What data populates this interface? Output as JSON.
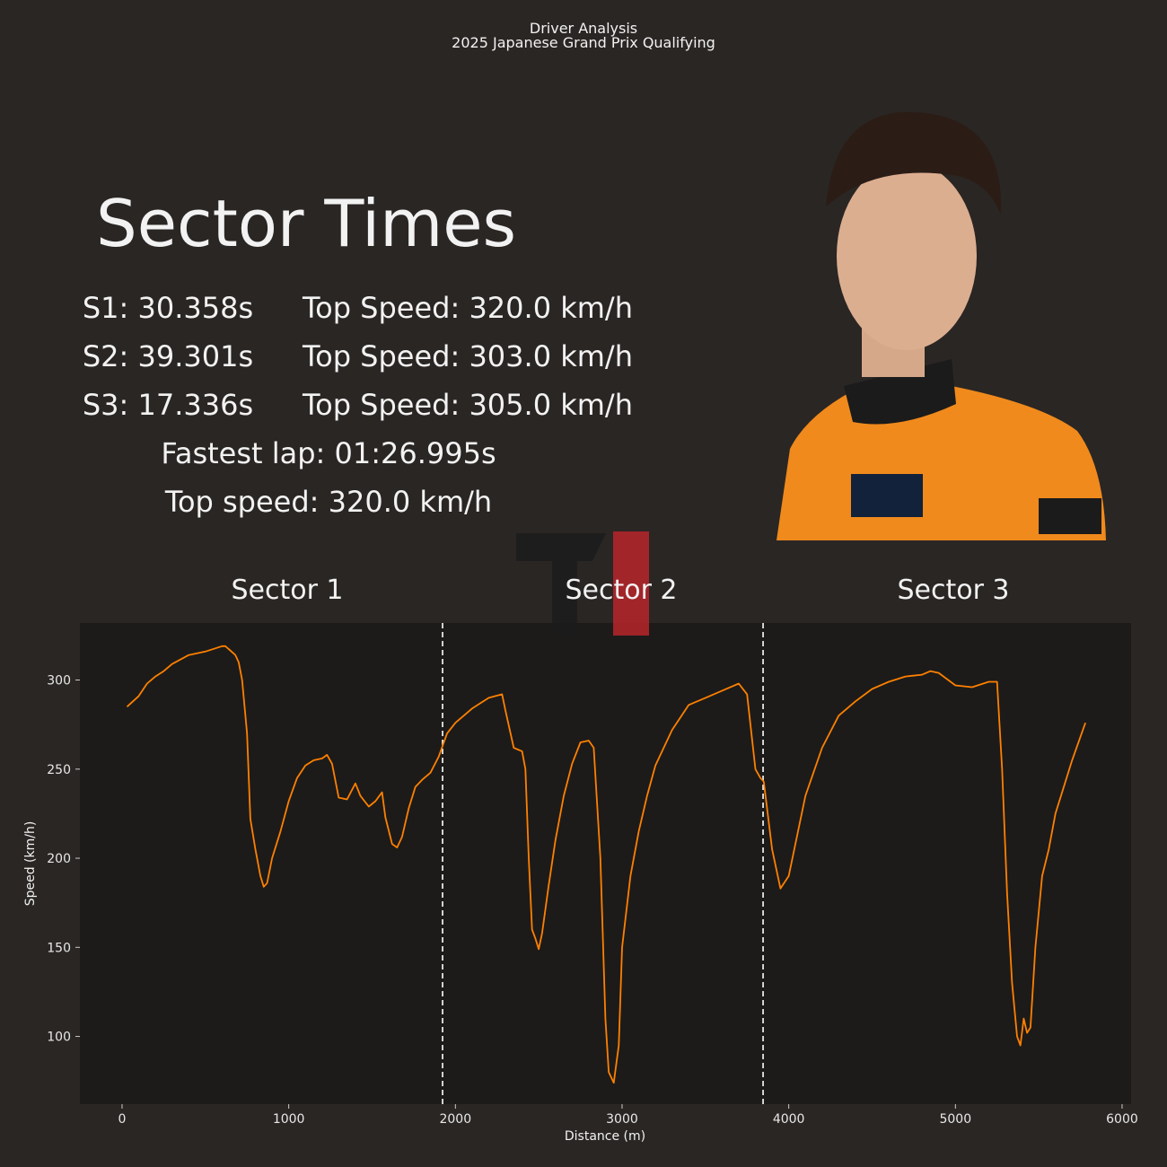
{
  "header": {
    "title": "Driver Analysis",
    "subtitle": "2025 Japanese Grand Prix Qualifying"
  },
  "panel": {
    "heading": "Sector Times",
    "rows": [
      [
        "S1: 30.358s",
        "Top Speed: 320.0 km/h"
      ],
      [
        "S2: 39.301s",
        "Top Speed: 303.0 km/h"
      ],
      [
        "S3: 17.336s",
        "Top Speed: 305.0 km/h"
      ]
    ],
    "fastest_lap": "Fastest lap: 01:26.995s",
    "top_speed": "Top speed: 320.0 km/h"
  },
  "chart_data": {
    "type": "line",
    "sector_labels": [
      "Sector 1",
      "Sector 2",
      "Sector 3"
    ],
    "sector_boundaries": [
      1923,
      3846
    ],
    "x_label": "Distance (m)",
    "y_label": "Speed (km/h)",
    "color": "#ff8000",
    "x": [
      30,
      100,
      150,
      200,
      250,
      300,
      400,
      500,
      600,
      620,
      680,
      700,
      720,
      750,
      770,
      800,
      830,
      850,
      870,
      900,
      950,
      1000,
      1050,
      1100,
      1150,
      1200,
      1230,
      1260,
      1300,
      1350,
      1400,
      1430,
      1480,
      1520,
      1560,
      1580,
      1620,
      1650,
      1680,
      1720,
      1760,
      1800,
      1850,
      1900,
      1950,
      2000,
      2100,
      2200,
      2280,
      2300,
      2350,
      2400,
      2420,
      2440,
      2460,
      2480,
      2500,
      2520,
      2560,
      2600,
      2650,
      2700,
      2750,
      2800,
      2830,
      2870,
      2900,
      2920,
      2950,
      2980,
      3000,
      3050,
      3100,
      3150,
      3200,
      3300,
      3400,
      3500,
      3600,
      3700,
      3750,
      3800,
      3830,
      3850,
      3900,
      3950,
      4000,
      4100,
      4200,
      4300,
      4400,
      4500,
      4600,
      4700,
      4800,
      4850,
      4900,
      5000,
      5100,
      5200,
      5250,
      5280,
      5310,
      5340,
      5370,
      5390,
      5410,
      5430,
      5450,
      5480,
      5520,
      5560,
      5600,
      5700,
      5780
    ],
    "values": [
      285,
      291,
      298,
      302,
      305,
      309,
      314,
      316,
      319,
      319,
      314,
      310,
      300,
      270,
      222,
      205,
      190,
      184,
      186,
      200,
      215,
      232,
      245,
      252,
      255,
      256,
      258,
      253,
      234,
      233,
      242,
      235,
      229,
      232,
      237,
      223,
      208,
      206,
      212,
      228,
      240,
      244,
      248,
      257,
      270,
      276,
      284,
      290,
      292,
      283,
      262,
      260,
      250,
      200,
      160,
      155,
      149,
      158,
      185,
      210,
      235,
      253,
      265,
      266,
      262,
      200,
      110,
      80,
      74,
      95,
      150,
      190,
      215,
      235,
      252,
      272,
      286,
      290,
      294,
      298,
      292,
      250,
      245,
      243,
      205,
      183,
      190,
      235,
      262,
      280,
      288,
      295,
      299,
      302,
      303,
      305,
      304,
      297,
      296,
      299,
      299,
      250,
      180,
      130,
      100,
      95,
      110,
      102,
      105,
      150,
      190,
      205,
      225,
      255,
      276
    ],
    "xlim": [
      -253,
      6054
    ],
    "ylim": [
      62,
      332
    ],
    "xticks": [
      0,
      1000,
      2000,
      3000,
      4000,
      5000,
      6000
    ],
    "yticks": [
      100,
      150,
      200,
      250,
      300
    ]
  }
}
